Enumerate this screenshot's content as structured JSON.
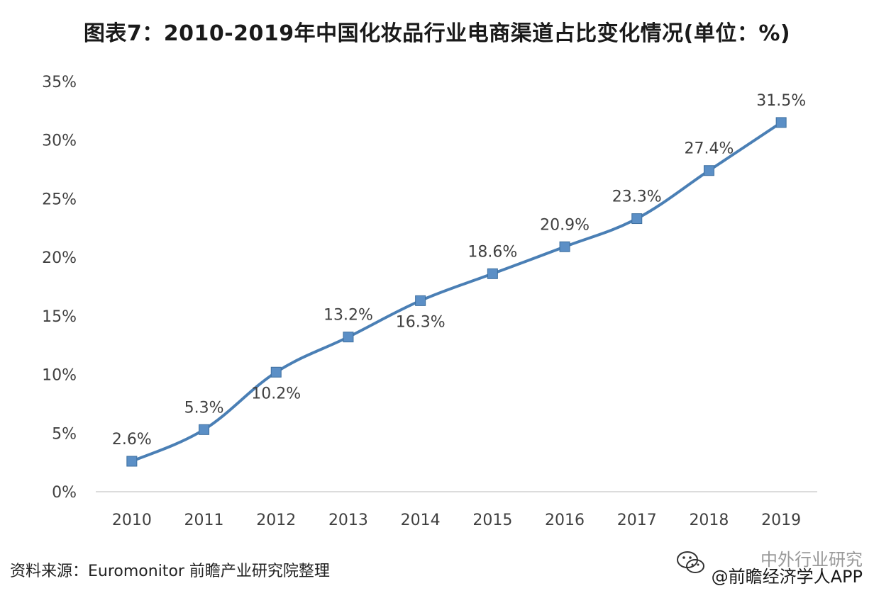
{
  "title": "图表7：2010-2019年中国化妆品行业电商渠道占比变化情况(单位：%)",
  "source": "资料来源：Euromonitor 前瞻产业研究院整理",
  "watermark": {
    "line1": "中外行业研究",
    "line2": "@前瞻经济学人APP"
  },
  "colors": {
    "line": "#4a7fb5",
    "marker": "#5b8fc6",
    "axis": "#d0d0d0",
    "text": "#404040"
  },
  "icons": {
    "wechat": "wechat-icon"
  },
  "chart_data": {
    "type": "line",
    "categories": [
      "2010",
      "2011",
      "2012",
      "2013",
      "2014",
      "2015",
      "2016",
      "2017",
      "2018",
      "2019"
    ],
    "values": [
      2.6,
      5.3,
      10.2,
      13.2,
      16.3,
      18.6,
      20.9,
      23.3,
      27.4,
      31.5
    ],
    "data_labels": [
      "2.6%",
      "5.3%",
      "10.2%",
      "13.2%",
      "16.3%",
      "18.6%",
      "20.9%",
      "23.3%",
      "27.4%",
      "31.5%"
    ],
    "y_ticks": [
      0,
      5,
      10,
      15,
      20,
      25,
      30,
      35
    ],
    "y_tick_labels": [
      "0%",
      "5%",
      "10%",
      "15%",
      "20%",
      "25%",
      "30%",
      "35%"
    ],
    "ylim": [
      0,
      35
    ],
    "grid": false,
    "legend": "none",
    "marker": "square",
    "xlabel": "",
    "ylabel": ""
  }
}
